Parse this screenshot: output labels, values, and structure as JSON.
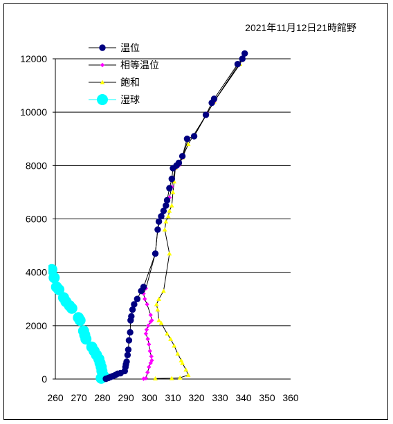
{
  "chart_data": {
    "type": "scatter",
    "title": "2021年11月12日21時館野",
    "xlabel": "",
    "ylabel": "",
    "xlim": [
      260,
      360
    ],
    "ylim": [
      0,
      12000
    ],
    "x_ticks": [
      "260",
      "270",
      "280",
      "290",
      "300",
      "310",
      "320",
      "330",
      "340",
      "350",
      "360"
    ],
    "y_ticks": [
      "0",
      "2000",
      "4000",
      "6000",
      "8000",
      "10000",
      "12000"
    ],
    "y_tick_values": [
      0,
      2000,
      4000,
      6000,
      8000,
      10000,
      12000
    ],
    "grid": "horizontal",
    "legend_position": "top-left",
    "series": [
      {
        "name": "温位",
        "color": "#000080",
        "marker": "circle",
        "points": [
          [
            281.5,
            10
          ],
          [
            282.5,
            40
          ],
          [
            283.5,
            80
          ],
          [
            284.5,
            110
          ],
          [
            285.5,
            150
          ],
          [
            286.5,
            200
          ],
          [
            287.7,
            220
          ],
          [
            289.5,
            300
          ],
          [
            289.8,
            450
          ],
          [
            290.0,
            550
          ],
          [
            290.3,
            650
          ],
          [
            290.7,
            900
          ],
          [
            291.0,
            1100
          ],
          [
            291.3,
            1450
          ],
          [
            291.8,
            1750
          ],
          [
            292.0,
            2200
          ],
          [
            292.3,
            2350
          ],
          [
            292.8,
            2600
          ],
          [
            293.5,
            2800
          ],
          [
            294.8,
            3000
          ],
          [
            296.5,
            3300
          ],
          [
            297.5,
            3450
          ],
          [
            302.5,
            4700
          ],
          [
            303.5,
            5600
          ],
          [
            304.0,
            5900
          ],
          [
            305.0,
            6100
          ],
          [
            306.0,
            6300
          ],
          [
            307.0,
            6500
          ],
          [
            307.5,
            6700
          ],
          [
            308.5,
            7150
          ],
          [
            309.5,
            7500
          ],
          [
            310.0,
            7900
          ],
          [
            311.5,
            8000
          ],
          [
            312.5,
            8100
          ],
          [
            314.0,
            8350
          ],
          [
            316.0,
            9000
          ],
          [
            319.0,
            9100
          ],
          [
            324.0,
            9900
          ],
          [
            326.5,
            10350
          ],
          [
            327.5,
            10500
          ],
          [
            337.5,
            11800
          ],
          [
            339.5,
            12000
          ],
          [
            340.5,
            12200
          ]
        ]
      },
      {
        "name": "相等温位",
        "color": "#ff00ff",
        "marker": "diamond",
        "points": [
          [
            297.5,
            10
          ],
          [
            298.5,
            30
          ],
          [
            299.2,
            250
          ],
          [
            299.8,
            450
          ],
          [
            300.5,
            600
          ],
          [
            301.0,
            700
          ],
          [
            300.8,
            850
          ],
          [
            300.2,
            1050
          ],
          [
            299.8,
            1300
          ],
          [
            299.3,
            1500
          ],
          [
            298.5,
            1700
          ],
          [
            298.8,
            1850
          ],
          [
            299.5,
            2000
          ],
          [
            300.5,
            2150
          ],
          [
            301.0,
            2200
          ],
          [
            300.5,
            2400
          ],
          [
            299.0,
            2800
          ],
          [
            298.0,
            3000
          ],
          [
            297.5,
            3200
          ],
          [
            298.5,
            3400
          ],
          [
            302.5,
            4700
          ],
          [
            303.5,
            5600
          ],
          [
            304.3,
            5900
          ],
          [
            305.5,
            6100
          ],
          [
            306.5,
            6300
          ],
          [
            307.5,
            6500
          ],
          [
            308.5,
            6800
          ],
          [
            309.5,
            7200
          ],
          [
            310.0,
            7500
          ],
          [
            311.0,
            7900
          ],
          [
            312.5,
            8000
          ],
          [
            314.0,
            8300
          ],
          [
            316.5,
            9000
          ],
          [
            319.0,
            9100
          ],
          [
            324.5,
            9950
          ],
          [
            327.5,
            10400
          ],
          [
            338.0,
            11800
          ],
          [
            339.5,
            12000
          ],
          [
            340.5,
            12200
          ]
        ]
      },
      {
        "name": "飽和",
        "color": "#ffff00",
        "marker": "triangle",
        "points": [
          [
            302.5,
            20
          ],
          [
            309.5,
            30
          ],
          [
            313.0,
            50
          ],
          [
            316.5,
            150
          ],
          [
            315.5,
            350
          ],
          [
            314.0,
            600
          ],
          [
            313.5,
            700
          ],
          [
            312.0,
            950
          ],
          [
            310.5,
            1250
          ],
          [
            309.0,
            1500
          ],
          [
            307.5,
            1700
          ],
          [
            305.0,
            2100
          ],
          [
            304.0,
            2200
          ],
          [
            303.5,
            2600
          ],
          [
            303.0,
            2800
          ],
          [
            304.0,
            3000
          ],
          [
            306.0,
            3300
          ],
          [
            308.5,
            4700
          ],
          [
            306.5,
            5600
          ],
          [
            307.0,
            5900
          ],
          [
            308.0,
            6100
          ],
          [
            308.5,
            6300
          ],
          [
            309.5,
            6500
          ],
          [
            310.0,
            7000
          ],
          [
            310.5,
            7400
          ],
          [
            311.0,
            7900
          ],
          [
            312.5,
            8100
          ],
          [
            314.0,
            8300
          ],
          [
            316.5,
            8800
          ],
          [
            318.5,
            9100
          ],
          [
            324.5,
            9950
          ],
          [
            327.5,
            10400
          ],
          [
            338.5,
            11800
          ],
          [
            339.5,
            12000
          ],
          [
            340.5,
            12200
          ]
        ]
      },
      {
        "name": "湿球",
        "color": "#00ffff",
        "marker": "big-circle",
        "points": [
          [
            279.5,
            30
          ],
          [
            280.5,
            120
          ],
          [
            279.8,
            300
          ],
          [
            279.5,
            450
          ],
          [
            279.0,
            600
          ],
          [
            278.5,
            750
          ],
          [
            277.5,
            900
          ],
          [
            276.5,
            1050
          ],
          [
            275.5,
            1200
          ],
          [
            273.0,
            1500
          ],
          [
            272.5,
            1650
          ],
          [
            272.0,
            1800
          ],
          [
            270.5,
            2200
          ],
          [
            269.8,
            2300
          ],
          [
            267.0,
            2650
          ],
          [
            266.0,
            2750
          ],
          [
            264.5,
            2900
          ],
          [
            263.5,
            3050
          ],
          [
            261.5,
            3350
          ],
          [
            260.5,
            3450
          ],
          [
            259.5,
            3800
          ],
          [
            258.5,
            4100
          ]
        ]
      }
    ]
  }
}
